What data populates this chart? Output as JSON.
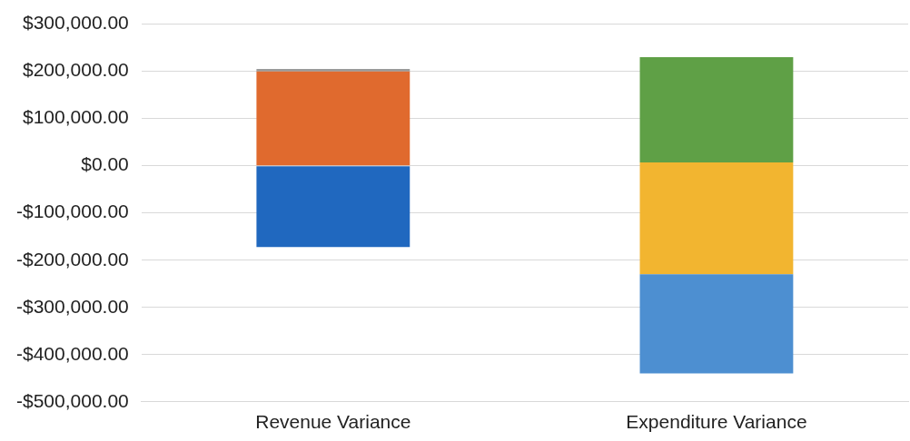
{
  "chart_data": {
    "type": "bar",
    "categories": [
      "Revenue Variance",
      "Expenditure Variance"
    ],
    "series": [
      {
        "color": "#2068bf",
        "values": [
          -172000,
          null
        ],
        "base": [
          0,
          null
        ]
      },
      {
        "color": "#e06a2e",
        "values": [
          200000,
          null
        ],
        "base": [
          0,
          null
        ]
      },
      {
        "color": "#9a9a9a",
        "values": [
          5000,
          null
        ],
        "base": [
          200000,
          null
        ]
      },
      {
        "color": "#4d8fd1",
        "values": [
          null,
          210000
        ],
        "base": [
          null,
          -440000
        ]
      },
      {
        "color": "#f2b530",
        "values": [
          null,
          237000
        ],
        "base": [
          null,
          -230000
        ]
      },
      {
        "color": "#5fa046",
        "values": [
          null,
          223000
        ],
        "base": [
          null,
          7000
        ]
      }
    ],
    "ylim": [
      -500000,
      300000
    ],
    "yticks": [
      {
        "value": -500000,
        "label": "-$500,000.00"
      },
      {
        "value": -400000,
        "label": "-$400,000.00"
      },
      {
        "value": -300000,
        "label": "-$300,000.00"
      },
      {
        "value": -200000,
        "label": "-$200,000.00"
      },
      {
        "value": -100000,
        "label": "-$100,000.00"
      },
      {
        "value": 0,
        "label": "$0.00"
      },
      {
        "value": 100000,
        "label": "$100,000.00"
      },
      {
        "value": 200000,
        "label": "$200,000.00"
      },
      {
        "value": 300000,
        "label": "$300,000.00"
      }
    ],
    "grid": "y",
    "legend": false
  }
}
